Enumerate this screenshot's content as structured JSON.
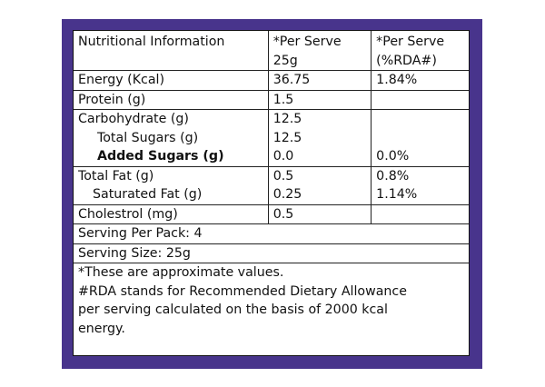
{
  "header": {
    "col1": "Nutritional Information",
    "col2_line1": "*Per Serve",
    "col2_line2": "25g",
    "col3_line1": "*Per Serve",
    "col3_line2": "(%RDA#)"
  },
  "rows": [
    {
      "label": "Energy (Kcal)",
      "per_serve": "36.75",
      "rda": "1.84%"
    },
    {
      "label": "Protein (g)",
      "per_serve": "1.5",
      "rda": ""
    },
    {
      "label": "Carbohydrate (g)",
      "per_serve": "12.5",
      "rda": ""
    },
    {
      "label": "Total Sugars (g)",
      "per_serve": "12.5",
      "rda": ""
    },
    {
      "label": "Added Sugars (g)",
      "per_serve": "0.0",
      "rda": "0.0%"
    },
    {
      "label": "Total Fat (g)",
      "per_serve": "0.5",
      "rda": "0.8%"
    },
    {
      "label": "Saturated Fat (g)",
      "per_serve": "0.25",
      "rda": "1.14%"
    },
    {
      "label": "Cholestrol (mg)",
      "per_serve": "0.5",
      "rda": ""
    }
  ],
  "serving_per_pack": "Serving Per Pack: 4",
  "serving_size": "Serving Size: 25g",
  "notes": {
    "line1": "*These are approximate values.",
    "line2": "#RDA stands for Recommended Dietary Allowance",
    "line3": "per serving calculated on the basis of 2000 kcal",
    "line4": "energy."
  },
  "colors": {
    "frame": "#48348c",
    "panel": "#ffffff",
    "text": "#111111"
  }
}
